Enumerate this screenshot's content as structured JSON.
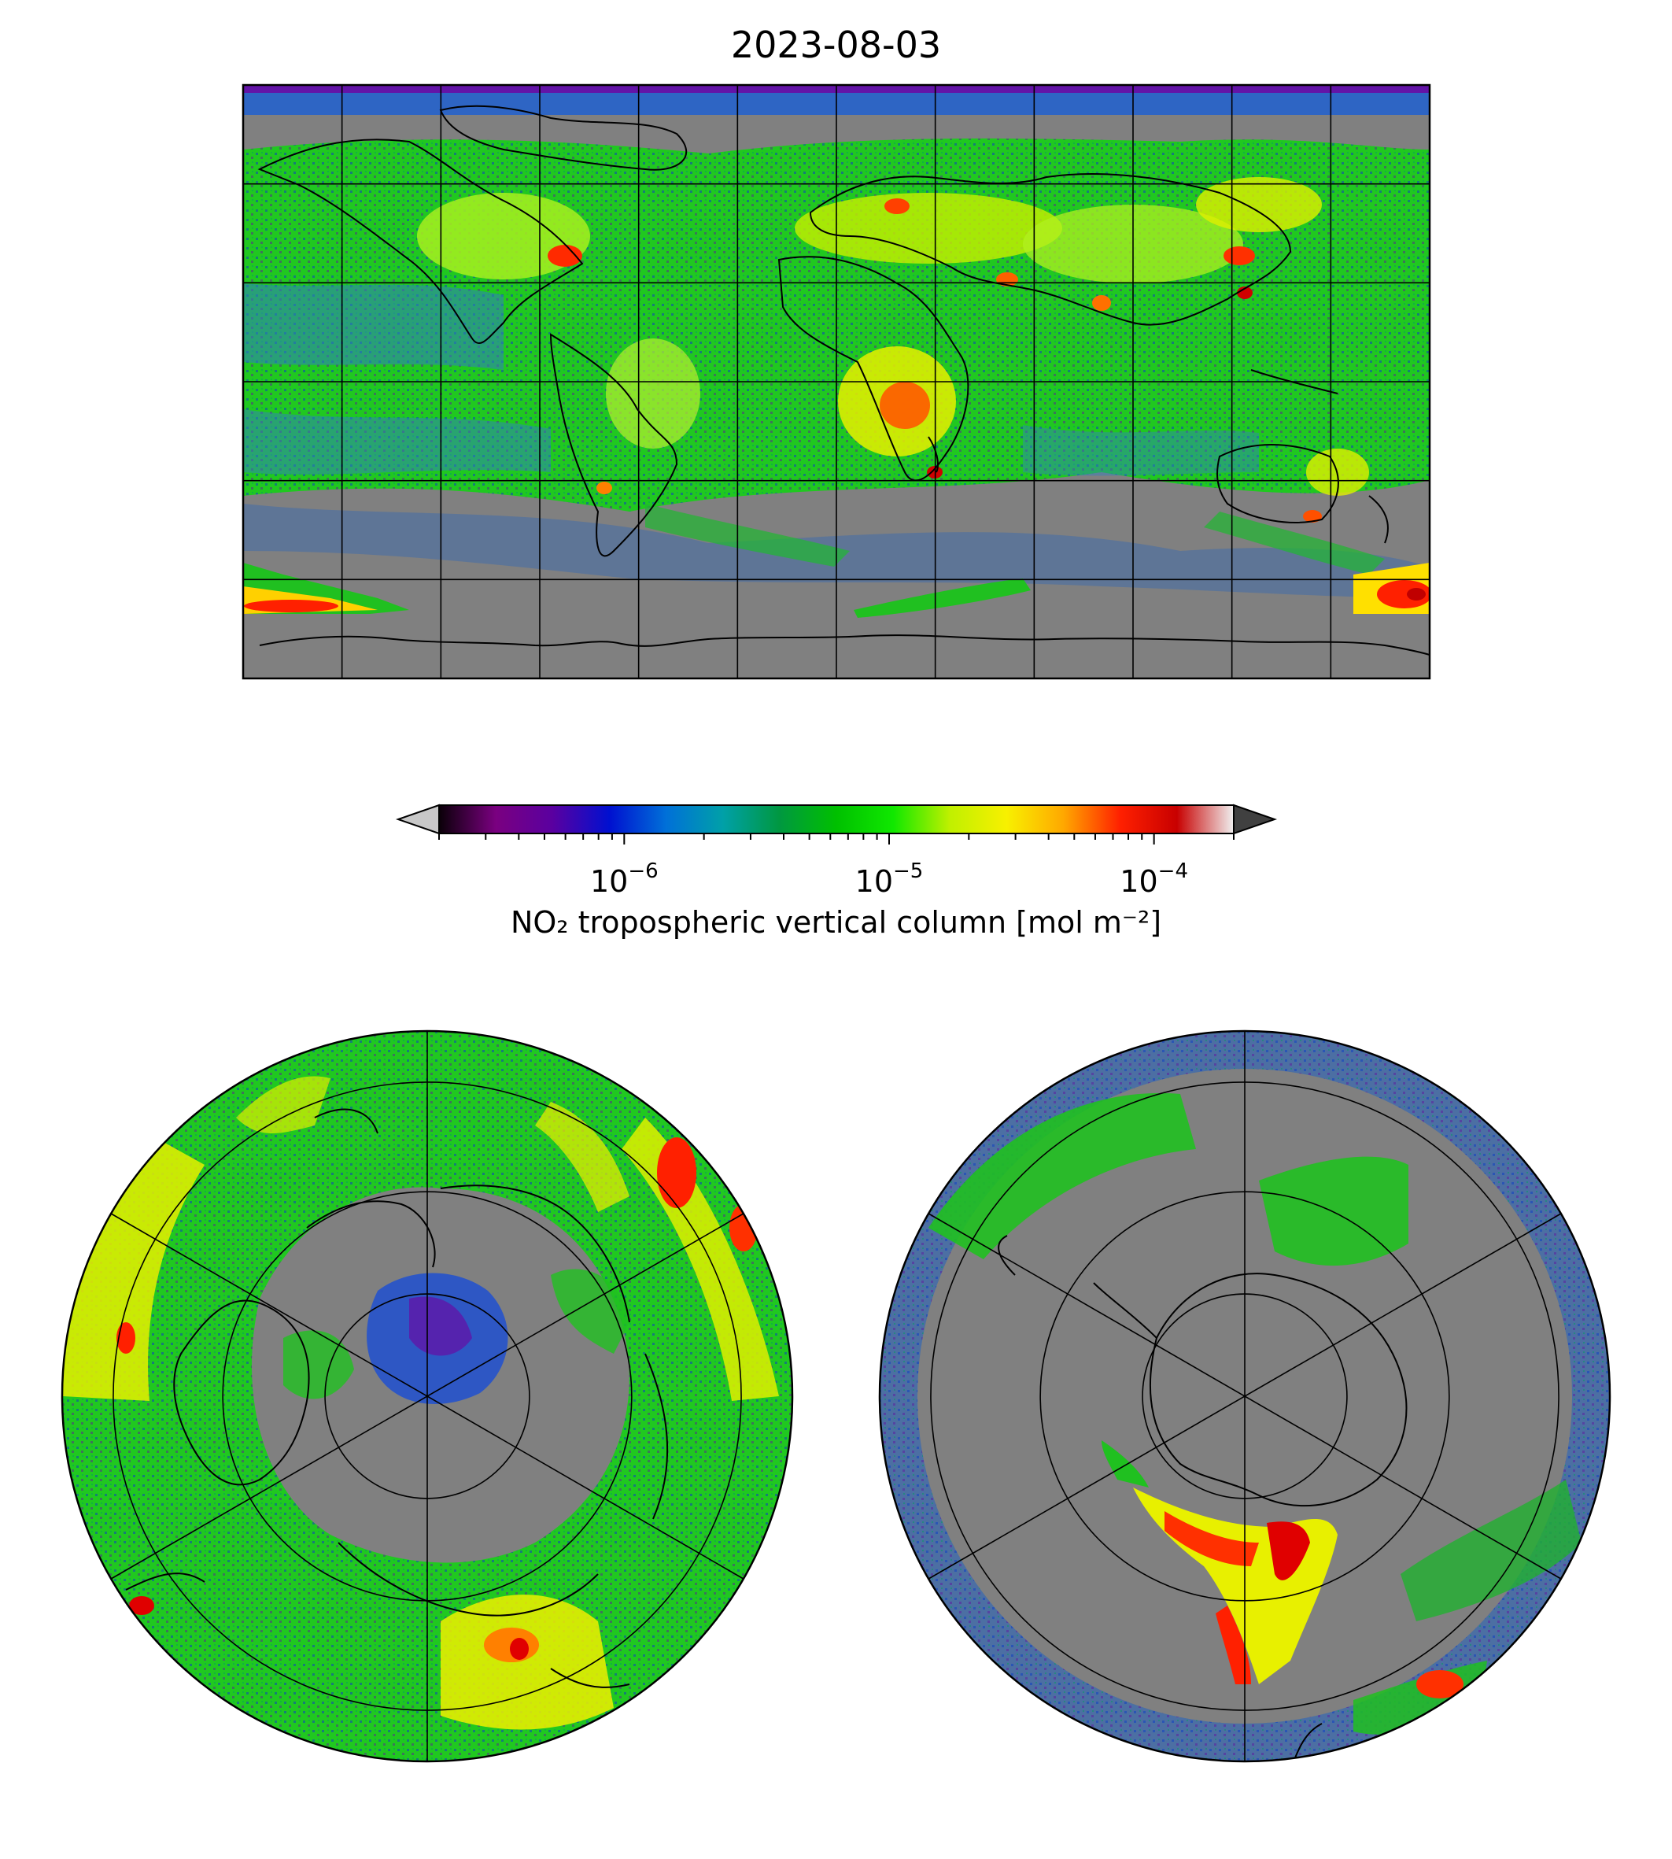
{
  "title": "2023-08-03",
  "colorbar": {
    "label": "NO₂ tropospheric vertical column [mol m⁻²]",
    "scale": "log",
    "range": [
      2e-07,
      0.0002
    ],
    "extend": "both",
    "ticks": [
      {
        "base": "10",
        "exp": "−6",
        "value": 1e-06
      },
      {
        "base": "10",
        "exp": "−5",
        "value": 1e-05
      },
      {
        "base": "10",
        "exp": "−4",
        "value": 0.0001
      }
    ],
    "colors": [
      "#0a0008",
      "#7a0080",
      "#5a00a0",
      "#0010d0",
      "#0070d8",
      "#00a0a8",
      "#009840",
      "#00c000",
      "#10e800",
      "#c0f000",
      "#f8f000",
      "#ffa800",
      "#ff2000",
      "#c80000",
      "#f0f0f0"
    ],
    "under_color": "#c8c8c8",
    "over_color": "#404040"
  },
  "maps": {
    "global": {
      "projection": "equirectangular",
      "no_data_color": "#808080"
    },
    "north_polar": {
      "projection": "north-polar-stereographic"
    },
    "south_polar": {
      "projection": "south-polar-stereographic"
    }
  }
}
